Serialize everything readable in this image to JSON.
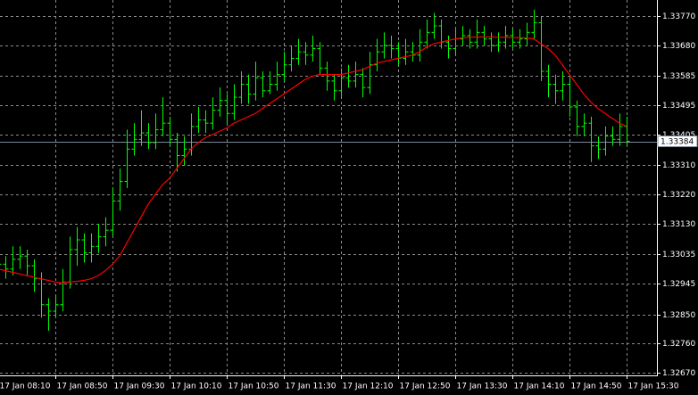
{
  "chart_data": {
    "type": "ohlc",
    "categories": [
      "17 Jan 08:10",
      null,
      null,
      null,
      null,
      null,
      null,
      null,
      "17 Jan 08:50",
      null,
      null,
      null,
      null,
      null,
      null,
      null,
      "17 Jan 09:30",
      null,
      null,
      null,
      null,
      null,
      null,
      null,
      "17 Jan 10:10",
      null,
      null,
      null,
      null,
      null,
      null,
      null,
      "17 Jan 10:50",
      null,
      null,
      null,
      null,
      null,
      null,
      null,
      "17 Jan 11:30",
      null,
      null,
      null,
      null,
      null,
      null,
      null,
      "17 Jan 12:10",
      null,
      null,
      null,
      null,
      null,
      null,
      null,
      "17 Jan 12:50",
      null,
      null,
      null,
      null,
      null,
      null,
      null,
      "17 Jan 13:30",
      null,
      null,
      null,
      null,
      null,
      null,
      null,
      "17 Jan 14:10",
      null,
      null,
      null,
      null,
      null,
      null,
      null,
      "17 Jan 14:50",
      null,
      null,
      null,
      null,
      null,
      null,
      null,
      "17 Jan 15:30"
    ],
    "open": [
      1.3298,
      1.33005,
      1.3299,
      1.3302,
      1.3303,
      1.33,
      1.3296,
      1.3288,
      1.3286,
      1.3288,
      1.3295,
      1.3305,
      1.3308,
      1.3304,
      1.3306,
      1.3309,
      1.3311,
      1.332,
      1.3326,
      1.3336,
      1.3339,
      1.3341,
      1.3338,
      1.3342,
      1.3344,
      1.3339,
      1.3334,
      1.3336,
      1.3343,
      1.3345,
      1.3344,
      1.3348,
      1.3351,
      1.3347,
      1.3352,
      1.3356,
      1.3353,
      1.3358,
      1.3354,
      1.3356,
      1.3359,
      1.3362,
      1.3364,
      1.3366,
      1.3365,
      1.3367,
      1.3361,
      1.3357,
      1.3354,
      1.3358,
      1.3357,
      1.3359,
      1.3355,
      1.3362,
      1.3366,
      1.3368,
      1.3367,
      1.3364,
      1.3366,
      1.3365,
      1.3369,
      1.3372,
      1.3374,
      1.3369,
      1.3367,
      1.337,
      1.3371,
      1.3369,
      1.3372,
      1.337,
      1.3368,
      1.3369,
      1.3371,
      1.3369,
      1.337,
      1.3372,
      1.3375,
      1.336,
      1.3356,
      1.3354,
      1.3356,
      1.3349,
      1.3343,
      1.3344,
      1.3337,
      1.3336,
      1.334,
      1.3339,
      1.3343
    ],
    "high": [
      1.3303,
      1.3303,
      1.3306,
      1.3306,
      1.3305,
      1.3302,
      1.3298,
      1.329,
      1.3291,
      1.3299,
      1.3309,
      1.3312,
      1.331,
      1.331,
      1.3313,
      1.3315,
      1.3324,
      1.333,
      1.3342,
      1.3344,
      1.3348,
      1.3344,
      1.3347,
      1.3352,
      1.3346,
      1.3341,
      1.334,
      1.3347,
      1.3349,
      1.3348,
      1.3352,
      1.3355,
      1.3353,
      1.3356,
      1.336,
      1.3359,
      1.3363,
      1.336,
      1.336,
      1.3363,
      1.3366,
      1.3368,
      1.337,
      1.3369,
      1.3371,
      1.3369,
      1.3363,
      1.3359,
      1.3361,
      1.3362,
      1.3363,
      1.3361,
      1.3366,
      1.337,
      1.3372,
      1.3371,
      1.3369,
      1.337,
      1.3369,
      1.3373,
      1.3376,
      1.3378,
      1.3376,
      1.3371,
      1.3373,
      1.3374,
      1.3373,
      1.3376,
      1.3374,
      1.3372,
      1.3372,
      1.3374,
      1.3373,
      1.3373,
      1.3375,
      1.3379,
      1.3377,
      1.3362,
      1.3359,
      1.336,
      1.3358,
      1.3351,
      1.3347,
      1.3346,
      1.334,
      1.3343,
      1.3343,
      1.3347,
      1.3346
    ],
    "low": [
      1.3295,
      1.3296,
      1.3297,
      1.3299,
      1.3297,
      1.3292,
      1.3284,
      1.328,
      1.3284,
      1.3286,
      1.3293,
      1.33,
      1.3301,
      1.3301,
      1.3304,
      1.3306,
      1.3309,
      1.3317,
      1.3324,
      1.3334,
      1.3337,
      1.3336,
      1.3336,
      1.334,
      1.3337,
      1.3329,
      1.3331,
      1.3334,
      1.3341,
      1.3341,
      1.3342,
      1.3346,
      1.3344,
      1.3345,
      1.335,
      1.335,
      1.3351,
      1.3352,
      1.3353,
      1.3354,
      1.3357,
      1.336,
      1.3362,
      1.3362,
      1.3363,
      1.3359,
      1.3354,
      1.3351,
      1.3352,
      1.3355,
      1.3355,
      1.3352,
      1.3353,
      1.336,
      1.3364,
      1.3364,
      1.3362,
      1.3362,
      1.3363,
      1.3363,
      1.3367,
      1.337,
      1.3367,
      1.3364,
      1.3365,
      1.3368,
      1.3367,
      1.3367,
      1.3368,
      1.3366,
      1.3366,
      1.3367,
      1.3367,
      1.3367,
      1.3368,
      1.337,
      1.3357,
      1.3352,
      1.335,
      1.3351,
      1.3346,
      1.334,
      1.334,
      1.3332,
      1.3333,
      1.3334,
      1.3337,
      1.3337,
      1.3337
    ],
    "close": [
      1.33005,
      1.3299,
      1.3302,
      1.3303,
      1.33,
      1.3296,
      1.3288,
      1.3286,
      1.3288,
      1.3295,
      1.3305,
      1.3308,
      1.3304,
      1.3306,
      1.3309,
      1.3311,
      1.332,
      1.3326,
      1.3336,
      1.3339,
      1.3341,
      1.3338,
      1.3342,
      1.3344,
      1.3339,
      1.3334,
      1.3336,
      1.3343,
      1.3345,
      1.3344,
      1.3348,
      1.3351,
      1.3347,
      1.3352,
      1.3356,
      1.3353,
      1.3358,
      1.3354,
      1.3356,
      1.3359,
      1.3362,
      1.3364,
      1.3366,
      1.3365,
      1.3367,
      1.3361,
      1.3357,
      1.3354,
      1.3358,
      1.3357,
      1.3359,
      1.3355,
      1.3362,
      1.3366,
      1.3368,
      1.3367,
      1.3364,
      1.3366,
      1.3365,
      1.3369,
      1.3372,
      1.3374,
      1.3369,
      1.3367,
      1.337,
      1.3371,
      1.3369,
      1.3372,
      1.337,
      1.3368,
      1.3369,
      1.3371,
      1.3369,
      1.337,
      1.3372,
      1.3375,
      1.336,
      1.3356,
      1.3354,
      1.3356,
      1.3349,
      1.3343,
      1.3344,
      1.3337,
      1.3336,
      1.334,
      1.3339,
      1.3343,
      1.33384
    ],
    "color": "#00ff00",
    "ma": {
      "color": "#ff0000",
      "values": [
        1.3299,
        1.32985,
        1.3298,
        1.32975,
        1.3297,
        1.32965,
        1.3296,
        1.32955,
        1.3295,
        1.32948,
        1.3295,
        1.32952,
        1.32955,
        1.3296,
        1.3297,
        1.32985,
        1.33005,
        1.3303,
        1.3307,
        1.3311,
        1.3315,
        1.3319,
        1.3322,
        1.3325,
        1.3327,
        1.333,
        1.3333,
        1.3336,
        1.3338,
        1.33395,
        1.33405,
        1.33415,
        1.33425,
        1.3344,
        1.3345,
        1.3346,
        1.3347,
        1.33485,
        1.335,
        1.33515,
        1.3353,
        1.33545,
        1.3356,
        1.33575,
        1.33585,
        1.3359,
        1.3359,
        1.3359,
        1.3359,
        1.33595,
        1.336,
        1.33605,
        1.33615,
        1.33625,
        1.3363,
        1.33635,
        1.3364,
        1.33645,
        1.3365,
        1.3366,
        1.33675,
        1.33685,
        1.3369,
        1.33695,
        1.337,
        1.33703,
        1.33705,
        1.33706,
        1.33706,
        1.33706,
        1.33705,
        1.33705,
        1.33704,
        1.33704,
        1.33703,
        1.337,
        1.33685,
        1.3367,
        1.3365,
        1.3362,
        1.3359,
        1.3356,
        1.3353,
        1.33505,
        1.33485,
        1.3347,
        1.33455,
        1.3344,
        1.3343
      ]
    },
    "current_price": 1.33384,
    "ylim": [
      1.32662,
      1.3382
    ],
    "yticks": [
      {
        "value": 1.3377,
        "label": "1.33770"
      },
      {
        "value": 1.3368,
        "label": "1.33680"
      },
      1.33585,
      1.33495,
      {
        "value": 1.33405,
        "label": "1.33405"
      },
      {
        "value": 1.3331,
        "label": "1.33310"
      },
      {
        "value": 1.3322,
        "label": "1.33220"
      },
      {
        "value": 1.3313,
        "label": "1.33130"
      },
      1.33035,
      1.32945,
      {
        "value": 1.3285,
        "label": "1.32850"
      },
      {
        "value": 1.3276,
        "label": "1.32760"
      },
      {
        "value": 1.3267,
        "label": "1.32670"
      }
    ],
    "grid": true
  }
}
